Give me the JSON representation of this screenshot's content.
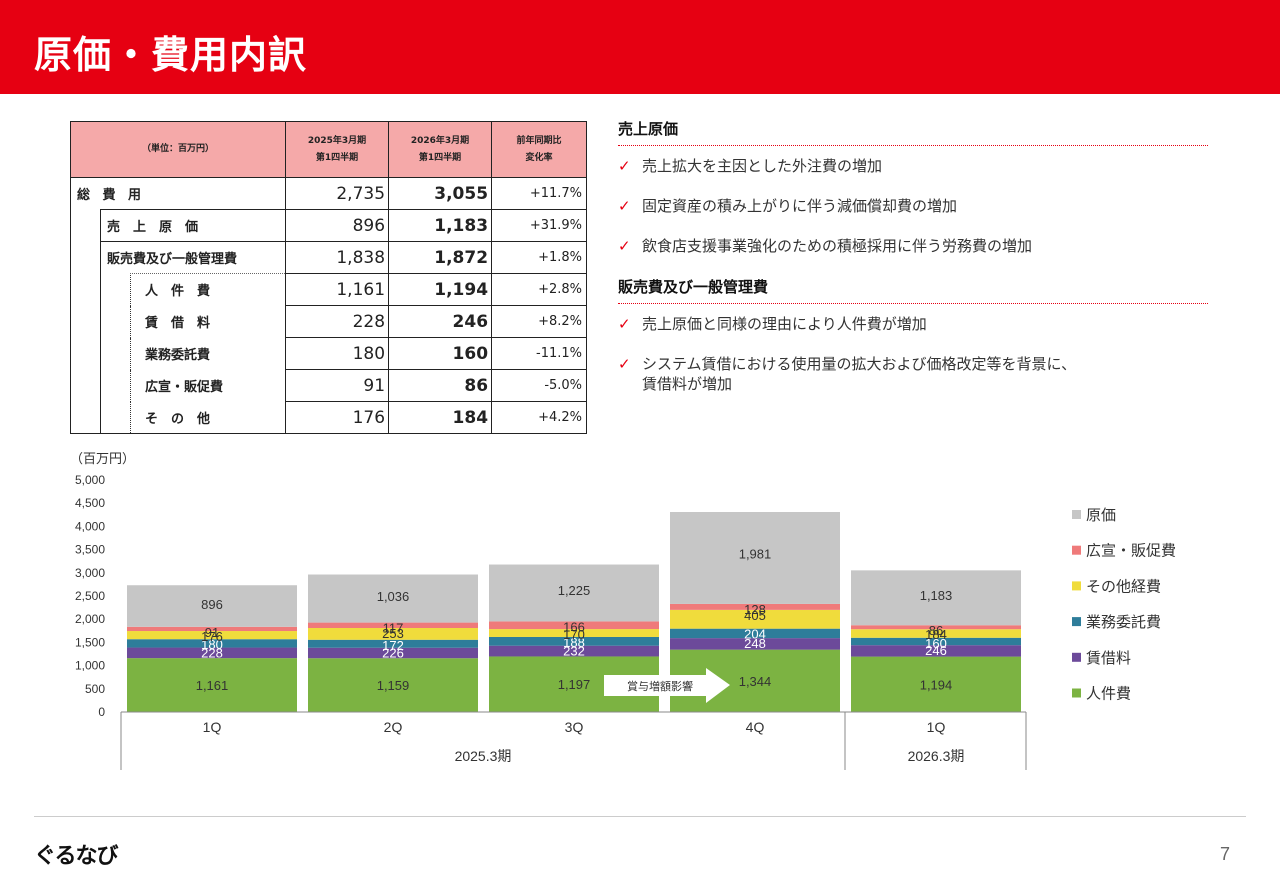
{
  "header": {
    "title": "原価・費用内訳"
  },
  "table": {
    "unit_label": "（単位：百万円）",
    "col_2025": [
      "2025年3月期",
      "第1四半期"
    ],
    "col_2026": [
      "2026年3月期",
      "第1四半期"
    ],
    "col_change": [
      "前年同期比",
      "変化率"
    ],
    "rows": [
      {
        "label": "総 費 用",
        "v2025": "2,735",
        "v2026": "3,055",
        "change": "+11.7%"
      },
      {
        "label": "売　上　原　価",
        "v2025": "896",
        "v2026": "1,183",
        "change": "+31.9%"
      },
      {
        "label": "販売費及び一般管理費",
        "v2025": "1,838",
        "v2026": "1,872",
        "change": "+1.8%"
      },
      {
        "label": "人　件　費",
        "v2025": "1,161",
        "v2026": "1,194",
        "change": "+2.8%"
      },
      {
        "label": "賃　借　料",
        "v2025": "228",
        "v2026": "246",
        "change": "+8.2%"
      },
      {
        "label": "業務委託費",
        "v2025": "180",
        "v2026": "160",
        "change": "-11.1%"
      },
      {
        "label": "広宣・販促費",
        "v2025": "91",
        "v2026": "86",
        "change": "-5.0%"
      },
      {
        "label": "そ　の　他",
        "v2025": "176",
        "v2026": "184",
        "change": "+4.2%"
      }
    ]
  },
  "notes": {
    "cogs_title": "売上原価",
    "cogs_items": [
      "売上拡大を主因とした外注費の増加",
      "固定資産の積み上がりに伴う減価償却費の増加",
      "飲食店支援事業強化のための積極採用に伴う労務費の増加"
    ],
    "sga_title": "販売費及び一般管理費",
    "sga_items": [
      "売上原価と同様の理由により人件費が増加",
      "システム賃借における使用量の拡大および価格改定等を背景に、",
      "賃借料が増加"
    ],
    "check_mark": "✓"
  },
  "chart_data": {
    "type": "bar",
    "stacked": true,
    "unit_label": "（百万円）",
    "ylim": [
      0,
      5000
    ],
    "yticks": [
      "0",
      "500",
      "1,000",
      "1,500",
      "2,000",
      "2,500",
      "3,000",
      "3,500",
      "4,000",
      "4,500",
      "5,000"
    ],
    "categories": [
      "1Q",
      "2Q",
      "3Q",
      "4Q",
      "1Q"
    ],
    "period_groups": [
      {
        "label": "2025.3期",
        "span": 4
      },
      {
        "label": "2026.3期",
        "span": 1
      }
    ],
    "series": [
      {
        "name": "人件費",
        "color": "#7cb342",
        "values": [
          1161,
          1159,
          1197,
          1344,
          1194
        ],
        "label_color": "#333333"
      },
      {
        "name": "賃借料",
        "color": "#6c4a9a",
        "values": [
          228,
          226,
          232,
          248,
          246
        ],
        "label_color": "#ffffff"
      },
      {
        "name": "業務委託費",
        "color": "#2e7d9a",
        "values": [
          180,
          172,
          188,
          204,
          160
        ],
        "label_color": "#ffffff"
      },
      {
        "name": "その他経費",
        "color": "#f0dc3c",
        "values": [
          176,
          253,
          170,
          405,
          184
        ],
        "label_color": "#333333"
      },
      {
        "name": "広宣・販促費",
        "color": "#ef7a7a",
        "values": [
          91,
          117,
          166,
          128,
          86
        ],
        "label_color": "#333333"
      },
      {
        "name": "原価",
        "color": "#c6c6c6",
        "values": [
          896,
          1036,
          1225,
          1981,
          1183
        ],
        "label_color": "#333333"
      }
    ],
    "legend_order": [
      "原価",
      "広宣・販促費",
      "その他経費",
      "業務委託費",
      "賃借料",
      "人件費"
    ],
    "legend_position": "right",
    "annotation": "賞与増額影響",
    "grid": false
  },
  "footer": {
    "logo": "ぐるなび",
    "page": "7"
  }
}
